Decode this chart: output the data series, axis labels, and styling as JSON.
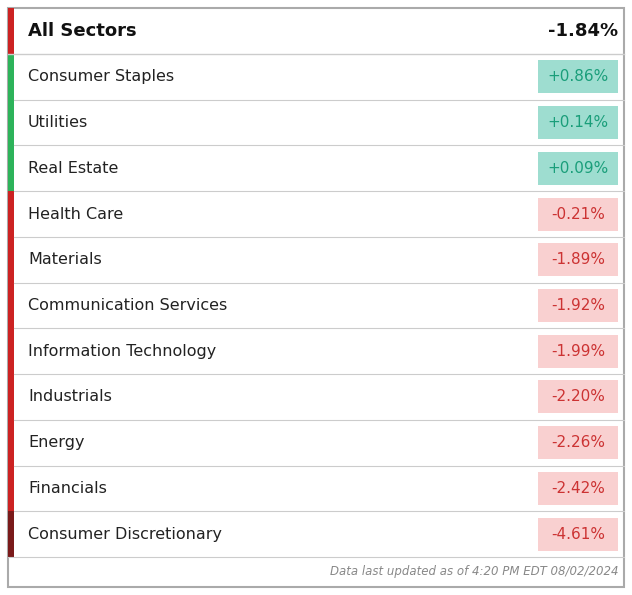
{
  "title_sector": "All Sectors",
  "title_value": "-1.84%",
  "sectors": [
    {
      "name": "Consumer Staples",
      "value": "+0.86%",
      "num": 0.86
    },
    {
      "name": "Utilities",
      "value": "+0.14%",
      "num": 0.14
    },
    {
      "name": "Real Estate",
      "value": "+0.09%",
      "num": 0.09
    },
    {
      "name": "Health Care",
      "value": "-0.21%",
      "num": -0.21
    },
    {
      "name": "Materials",
      "value": "-1.89%",
      "num": -1.89
    },
    {
      "name": "Communication Services",
      "value": "-1.92%",
      "num": -1.92
    },
    {
      "name": "Information Technology",
      "value": "-1.99%",
      "num": -1.99
    },
    {
      "name": "Industrials",
      "value": "-2.20%",
      "num": -2.2
    },
    {
      "name": "Energy",
      "value": "-2.26%",
      "num": -2.26
    },
    {
      "name": "Financials",
      "value": "-2.42%",
      "num": -2.42
    },
    {
      "name": "Consumer Discretionary",
      "value": "-4.61%",
      "num": -4.61
    }
  ],
  "bg_color": "#ffffff",
  "outer_border_color": "#aaaaaa",
  "positive_badge_bg": "#9eddd0",
  "negative_badge_bg": "#f9d0d0",
  "positive_badge_text": "#1a9e7a",
  "negative_badge_text": "#cc3333",
  "positive_side_color": "#2db35a",
  "negative_side_color_dark": "#cc2222",
  "negative_side_color_light": "#cc4444",
  "header_side_color": "#cc2222",
  "last_side_color": "#7a1a1a",
  "row_divider_color": "#cccccc",
  "footer_text": "Data last updated as of 4:20 PM EDT 08/02/2024",
  "footer_color": "#888888",
  "label_color": "#222222",
  "title_color": "#111111",
  "header_value_color": "#111111"
}
